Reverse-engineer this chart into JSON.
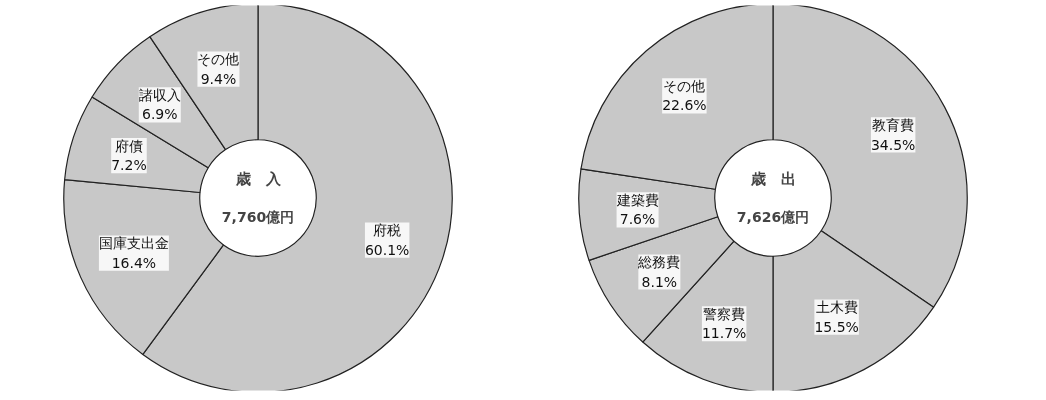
{
  "chart_data": [
    {
      "type": "donut",
      "title": "歳　入",
      "subtitle": "7,760億円",
      "categories": [
        "府税",
        "国庫支出金",
        "府債",
        "諸収入",
        "その他"
      ],
      "values": [
        60.1,
        16.4,
        7.2,
        6.9,
        9.4
      ],
      "value_labels": [
        "60.1%",
        "16.4%",
        "7.2%",
        "6.9%",
        "9.4%"
      ],
      "colors": [
        "#c8c8c8",
        "#c8c8c8",
        "#c8c8c8",
        "#c8c8c8",
        "#c8c8c8"
      ]
    },
    {
      "type": "donut",
      "title": "歳　出",
      "subtitle": "7,626億円",
      "categories": [
        "教育費",
        "土木費",
        "警察費",
        "総務費",
        "建築費",
        "その他"
      ],
      "values": [
        34.5,
        15.5,
        11.7,
        8.1,
        7.6,
        22.6
      ],
      "value_labels": [
        "34.5%",
        "15.5%",
        "11.7%",
        "8.1%",
        "7.6%",
        "22.6%"
      ],
      "colors": [
        "#c8c8c8",
        "#c8c8c8",
        "#c8c8c8",
        "#c8c8c8",
        "#c8c8c8",
        "#c8c8c8"
      ]
    }
  ]
}
